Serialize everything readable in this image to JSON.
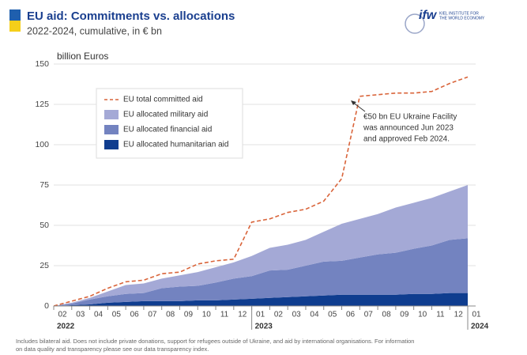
{
  "chart_data": {
    "type": "stacked_area_line",
    "title": "EU aid: Commitments vs. allocations",
    "subtitle": "2022-2024, cumulative, in € bn",
    "y_axis_label": "billion Euros",
    "logo": {
      "mark": "ifw",
      "text": [
        "KIEL INSTITUTE FOR",
        "THE WORLD ECONOMY"
      ]
    },
    "categories": [
      "02",
      "03",
      "04",
      "05",
      "06",
      "07",
      "08",
      "09",
      "10",
      "11",
      "12",
      "01",
      "02",
      "03",
      "04",
      "05",
      "06",
      "07",
      "08",
      "09",
      "10",
      "11",
      "12",
      "01"
    ],
    "year_labels": [
      "2022",
      "2023",
      "2024"
    ],
    "ylim": [
      0,
      150
    ],
    "yticks": [
      0,
      25,
      50,
      75,
      100,
      125,
      150
    ],
    "grid": true,
    "line": {
      "name": "EU total committed aid",
      "color": "#d9643a",
      "values": [
        0,
        3,
        6,
        11,
        15,
        16,
        20,
        21,
        26,
        28,
        29,
        52,
        54,
        58,
        60,
        65,
        79,
        130,
        131,
        132,
        132,
        133,
        138,
        142
      ]
    },
    "series": [
      {
        "name": "EU allocated military aid",
        "color": "#a4a9d6",
        "values": [
          0,
          0.5,
          1,
          3,
          5.5,
          6,
          6,
          7,
          8.5,
          9.5,
          10,
          12.5,
          14,
          15.5,
          16,
          18.5,
          23,
          24,
          25,
          28,
          28.5,
          29.5,
          30,
          33
        ]
      },
      {
        "name": "EU allocated financial aid",
        "color": "#7383c0",
        "values": [
          0,
          1,
          3,
          4,
          5,
          5,
          8,
          9,
          9,
          11,
          13,
          14,
          17,
          17,
          19,
          21,
          21,
          23,
          25,
          26,
          28,
          30,
          33,
          34
        ]
      },
      {
        "name": "EU allocated humanitarian aid",
        "color": "#0f3d8f",
        "values": [
          0,
          0.5,
          1,
          2,
          2.5,
          3,
          3,
          3,
          3.5,
          3.5,
          4,
          4.5,
          5,
          5.5,
          6,
          6.5,
          7,
          7,
          7,
          7,
          7.5,
          7.5,
          8,
          8
        ]
      }
    ],
    "annotation": [
      "€50 bn EU Ukraine Facility",
      "was announced Jun 2023",
      "and approved Feb 2024."
    ],
    "footnote": [
      "Includes bilateral aid. Does not include private donations, support for refugees outside of Ukraine, and aid by international organisations. For information",
      "on data quality and transparency please see our data transparency index."
    ]
  }
}
